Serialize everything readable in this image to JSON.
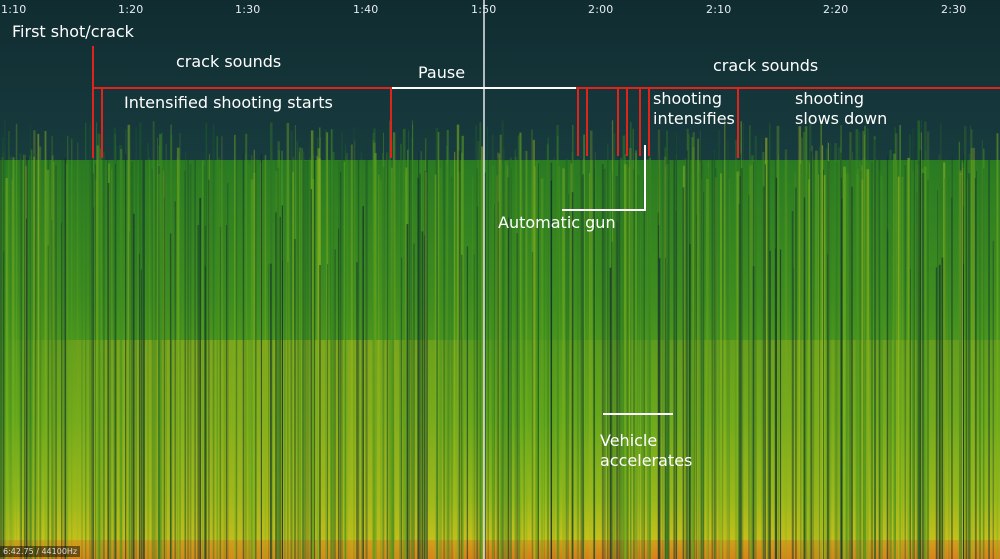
{
  "timeline": {
    "ticks": [
      "1:10",
      "1:20",
      "1:30",
      "1:40",
      "1:50",
      "2:00",
      "2:10",
      "2:20",
      "2:30"
    ],
    "playhead_time": "1:50"
  },
  "annotations": {
    "first_shot": "First shot/crack",
    "crack_sounds_1": "crack sounds",
    "intensified": "Intensified shooting starts",
    "pause": "Pause",
    "crack_sounds_2": "crack sounds",
    "shooting_intensifies_1": "shooting",
    "shooting_intensifies_2": "intensifies",
    "shooting_slows_1": "shooting",
    "shooting_slows_2": "slows down",
    "automatic_gun": "Automatic gun",
    "vehicle_1": "Vehicle",
    "vehicle_2": "accelerates"
  },
  "status": {
    "readout": "6:42.75 / 44100Hz"
  },
  "colors": {
    "background": "#123339",
    "marker_red": "#e0241b",
    "marker_white": "#ffffff",
    "spectrum_low": "#1d5a2a",
    "spectrum_mid": "#4f9a1f",
    "spectrum_high": "#c9c21b",
    "spectrum_peak": "#e0661a"
  }
}
